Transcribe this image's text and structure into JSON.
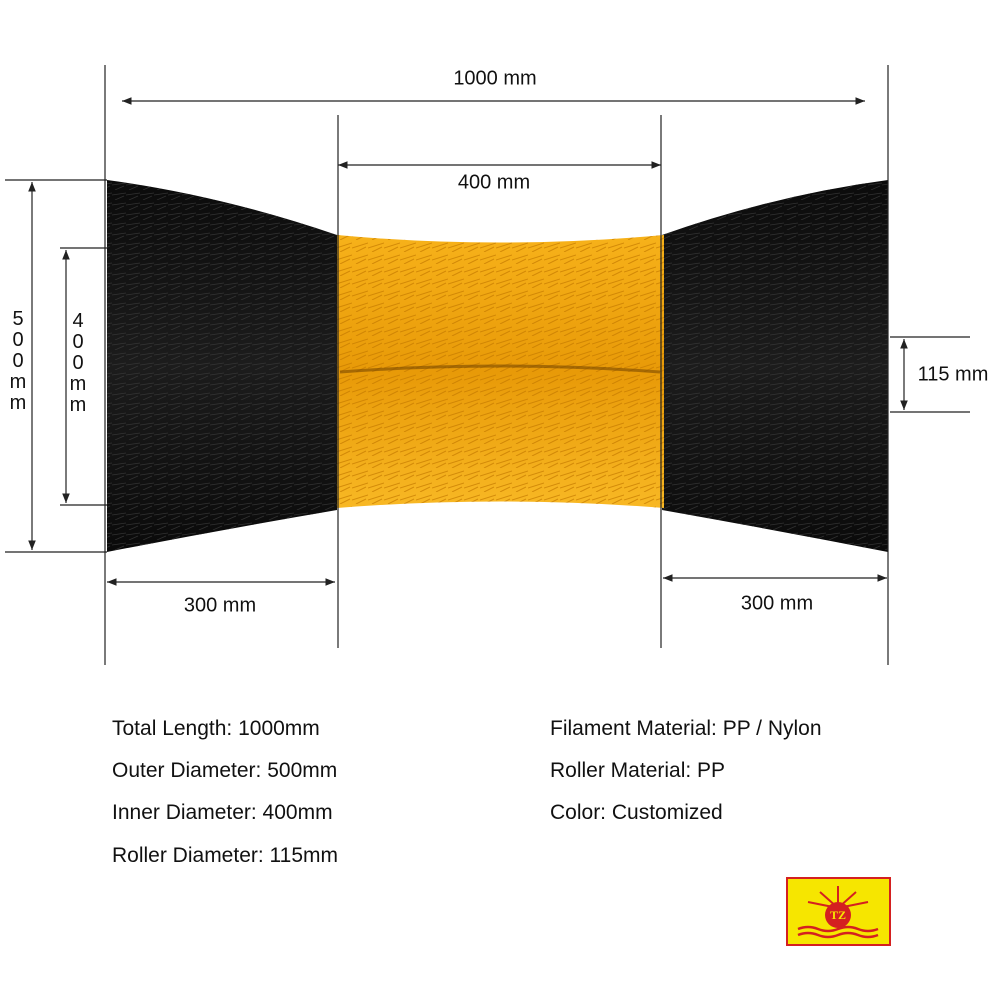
{
  "dimensions": {
    "total_length": "1000 mm",
    "middle_length": "400 mm",
    "outer_diameter": "500mm",
    "inner_diameter": "400mm",
    "roller_diameter": "115 mm",
    "left_section": "300 mm",
    "right_section": "300 mm"
  },
  "specs": {
    "left": [
      "Total Length: 1000mm",
      "Outer Diameter: 500mm",
      "Inner Diameter: 400mm",
      "Roller Diameter: 115mm"
    ],
    "right": [
      "Filament Material: PP / Nylon",
      "Roller Material: PP",
      "Color: Customized"
    ]
  },
  "logo": {
    "text": "TZ"
  }
}
